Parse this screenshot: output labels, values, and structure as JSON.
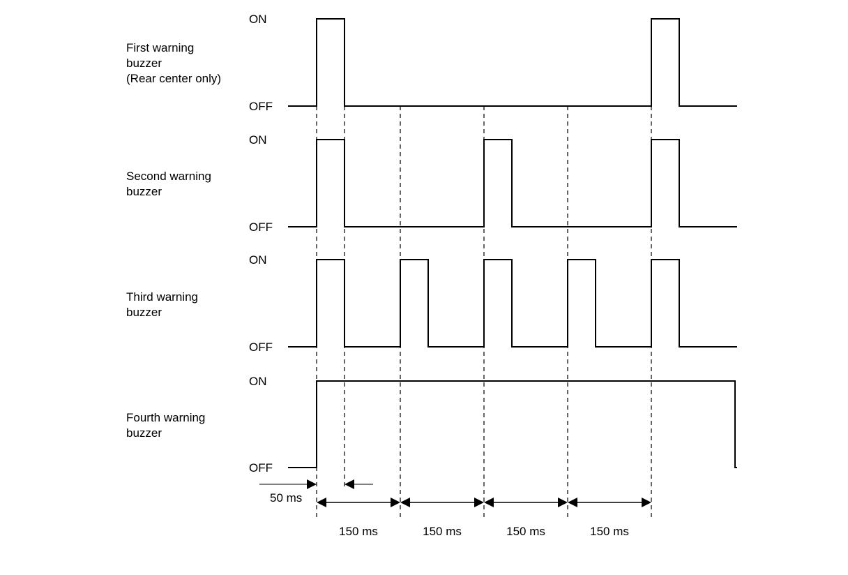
{
  "diagram": {
    "type": "timing-diagram",
    "colors": {
      "line": "#000000",
      "background": "#ffffff"
    },
    "levels": {
      "on": "ON",
      "off": "OFF"
    },
    "signals": [
      {
        "label_lines": [
          "First warning",
          "buzzer",
          "(Rear center only)"
        ],
        "on_intervals": [
          [
            0,
            50
          ],
          [
            600,
            650
          ]
        ]
      },
      {
        "label_lines": [
          "Second warning",
          "buzzer"
        ],
        "on_intervals": [
          [
            0,
            50
          ],
          [
            300,
            350
          ],
          [
            600,
            650
          ]
        ]
      },
      {
        "label_lines": [
          "Third warning",
          "buzzer"
        ],
        "on_intervals": [
          [
            0,
            50
          ],
          [
            150,
            200
          ],
          [
            300,
            350
          ],
          [
            450,
            500
          ],
          [
            600,
            650
          ]
        ]
      },
      {
        "label_lines": [
          "Fourth warning",
          "buzzer"
        ],
        "on_intervals": [
          [
            0,
            750
          ]
        ]
      }
    ],
    "time_range_ms": [
      -50,
      750
    ],
    "pulse_width": {
      "label": "50 ms",
      "value_ms": 50
    },
    "period": {
      "label": "150 ms",
      "value_ms": 150,
      "marks_ms": [
        0,
        150,
        300,
        450,
        600
      ]
    }
  }
}
